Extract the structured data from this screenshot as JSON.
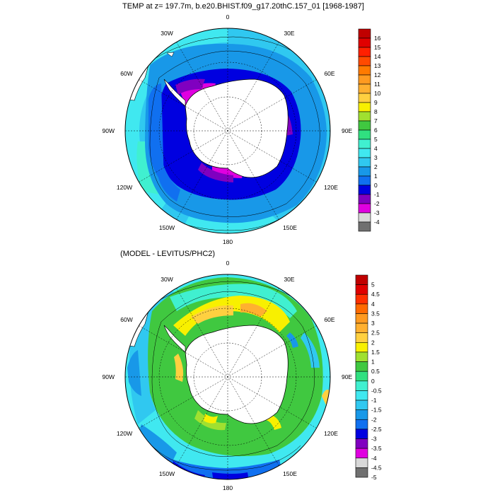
{
  "panels": [
    {
      "title": "TEMP at z= 197.7m, b.e20.BHIST.f09_g17.20thC.157_01 [1968-1987]",
      "lon_labels": [
        "0",
        "30E",
        "60E",
        "90E",
        "120E",
        "150E",
        "180",
        "150W",
        "120W",
        "90W",
        "60W",
        "30W"
      ],
      "colorbar": {
        "levels": [
          "16",
          "15",
          "14",
          "13",
          "12",
          "11",
          "10",
          "9",
          "8",
          "7",
          "6",
          "5",
          "4",
          "3",
          "2",
          "1",
          "0",
          "-1",
          "-2",
          "-3",
          "-4"
        ],
        "colors": [
          "#c00000",
          "#e00000",
          "#ff2000",
          "#ff4a00",
          "#ff7a00",
          "#ff9a20",
          "#ffb030",
          "#ffd040",
          "#f8f000",
          "#a0e030",
          "#40c840",
          "#30e080",
          "#40f0d0",
          "#40e8f0",
          "#30c8f0",
          "#1898e8",
          "#1070f0",
          "#0000e0",
          "#8000c0",
          "#e000e0",
          "#d8d8d8",
          "#707070"
        ]
      }
    },
    {
      "title": "(MODEL - LEVITUS/PHC2)",
      "lon_labels": [
        "0",
        "30E",
        "60E",
        "90E",
        "120E",
        "150E",
        "180",
        "150W",
        "120W",
        "90W",
        "60W",
        "30W"
      ],
      "colorbar": {
        "levels": [
          "5",
          "4.5",
          "4",
          "3.5",
          "3",
          "2.5",
          "2",
          "1.5",
          "1",
          "0.5",
          "0",
          "-0.5",
          "-1",
          "-1.5",
          "-2",
          "-2.5",
          "-3",
          "-3.5",
          "-4",
          "-4.5",
          "-5"
        ],
        "colors": [
          "#c00000",
          "#e00000",
          "#ff3000",
          "#ff6a00",
          "#ff9a20",
          "#ffb030",
          "#ffd040",
          "#f8f000",
          "#a0e030",
          "#40c840",
          "#30e080",
          "#40f0d0",
          "#40e8f0",
          "#30c8f0",
          "#1898e8",
          "#1070f0",
          "#0000e0",
          "#8000c0",
          "#e000e0",
          "#d8d8d8",
          "#707070"
        ]
      }
    }
  ]
}
